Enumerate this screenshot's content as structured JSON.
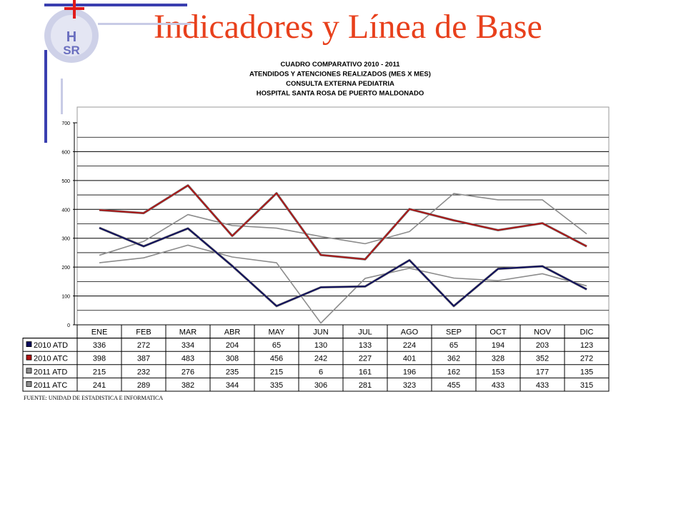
{
  "slide": {
    "title": "Indicadores y Línea de Base",
    "logo_text": "HSR",
    "colors": {
      "title": "#e8401c",
      "logo_ring": "#c8cbe6",
      "logo_letters": "#6a6fbf",
      "cross": "#e11b1b",
      "frame_bars": "#3a3fb0"
    }
  },
  "chart_data": {
    "type": "line",
    "title_lines": [
      "CUADRO COMPARATIVO 2010 - 2011",
      "ATENDIDOS Y ATENCIONES  REALIZADOS (MES X MES)",
      "CONSULTA EXTERNA PEDIATRIA",
      "HOSPITAL SANTA ROSA DE PUERTO MALDONADO"
    ],
    "categories": [
      "ENE",
      "FEB",
      "MAR",
      "ABR",
      "MAY",
      "JUN",
      "JUL",
      "AGO",
      "SEP",
      "OCT",
      "NOV",
      "DIC"
    ],
    "y_ticks": [
      "0",
      "100",
      "200",
      "300",
      "400",
      "500",
      "600",
      "700"
    ],
    "ylim": [
      0,
      700
    ],
    "grid": true,
    "series": [
      {
        "name": "2010 ATD",
        "color": "#0a0a5c",
        "values": [
          336,
          272,
          334,
          204,
          65,
          130,
          133,
          224,
          65,
          194,
          203,
          123
        ]
      },
      {
        "name": "2010 ATC",
        "color": "#b01212",
        "values": [
          398,
          387,
          483,
          308,
          456,
          242,
          227,
          401,
          362,
          328,
          352,
          272
        ]
      },
      {
        "name": "2011 ATD",
        "color": "#8c8c8c",
        "values": [
          215,
          232,
          276,
          235,
          215,
          6,
          161,
          196,
          162,
          153,
          177,
          135
        ]
      },
      {
        "name": "2011 ATC",
        "color": "#8c8c8c",
        "values": [
          241,
          289,
          382,
          344,
          335,
          306,
          281,
          323,
          455,
          433,
          433,
          315
        ]
      }
    ],
    "source": "FUENTE: UNIDAD DE ESTADISTICA E INFORMATICA"
  }
}
